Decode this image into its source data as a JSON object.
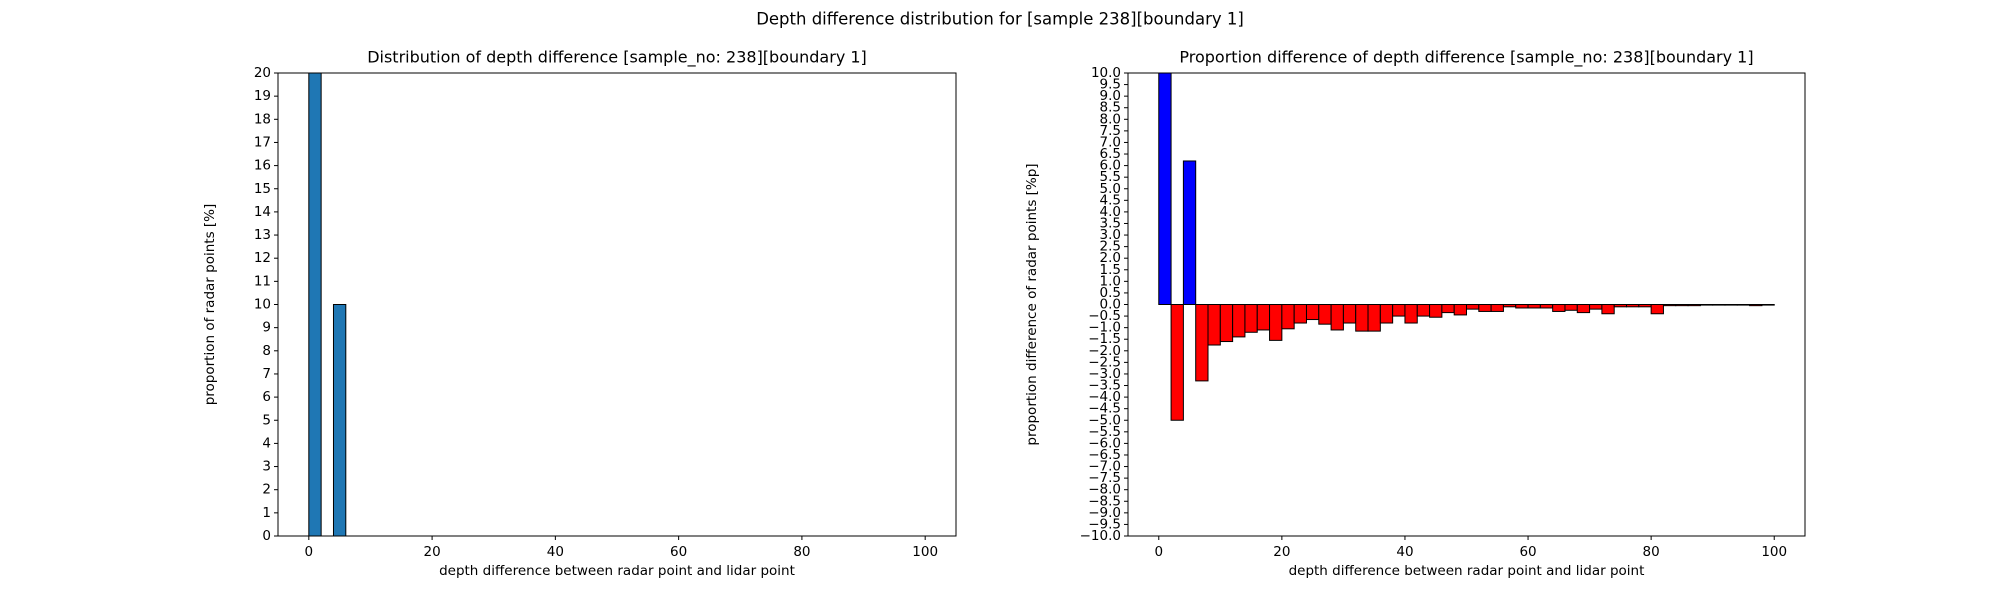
{
  "figure": {
    "suptitle": "Depth difference distribution for [sample 238][boundary 1]"
  },
  "chart_data": [
    {
      "type": "bar",
      "title": "Distribution of depth difference [sample_no: 238][boundary 1]",
      "xlabel": "depth difference between radar point and lidar point",
      "ylabel": "proportion of radar points [%]",
      "xlim": [
        -5,
        105
      ],
      "ylim": [
        0,
        20
      ],
      "xticks": [
        0,
        20,
        40,
        60,
        80,
        100
      ],
      "yticks": [
        0,
        1,
        2,
        3,
        4,
        5,
        6,
        7,
        8,
        9,
        10,
        11,
        12,
        13,
        14,
        15,
        16,
        17,
        18,
        19,
        20
      ],
      "bar_width": 2,
      "bar_color": "#1f77b4",
      "x": [
        1,
        5
      ],
      "values": [
        20,
        10
      ]
    },
    {
      "type": "bar",
      "title": "Proportion difference of depth difference [sample_no: 238][boundary 1]",
      "xlabel": "depth difference between radar point and lidar point",
      "ylabel": "proportion difference of radar points [%p]",
      "xlim": [
        -5,
        105
      ],
      "ylim": [
        -10,
        10
      ],
      "xticks": [
        0,
        20,
        40,
        60,
        80,
        100
      ],
      "yticks": [
        -10,
        -9.5,
        -9,
        -8.5,
        -8,
        -7.5,
        -7,
        -6.5,
        -6,
        -5.5,
        -5,
        -4.5,
        -4,
        -3.5,
        -3,
        -2.5,
        -2,
        -1.5,
        -1,
        -0.5,
        0,
        0.5,
        1,
        1.5,
        2,
        2.5,
        3,
        3.5,
        4,
        4.5,
        5,
        5.5,
        6,
        6.5,
        7,
        7.5,
        8,
        8.5,
        9,
        9.5,
        10
      ],
      "bar_width": 2,
      "positive_color": "#0000ff",
      "negative_color": "#ff0000",
      "x": [
        1,
        3,
        5,
        7,
        9,
        11,
        13,
        15,
        17,
        19,
        21,
        23,
        25,
        27,
        29,
        31,
        33,
        35,
        37,
        39,
        41,
        43,
        45,
        47,
        49,
        51,
        53,
        55,
        57,
        59,
        61,
        63,
        65,
        67,
        69,
        71,
        73,
        75,
        77,
        79,
        81,
        83,
        85,
        87,
        89,
        91,
        93,
        95,
        97,
        99
      ],
      "values": [
        10.0,
        -5.0,
        6.2,
        -3.3,
        -1.75,
        -1.6,
        -1.4,
        -1.2,
        -1.1,
        -1.55,
        -1.05,
        -0.8,
        -0.65,
        -0.85,
        -1.1,
        -0.8,
        -1.15,
        -1.15,
        -0.8,
        -0.5,
        -0.8,
        -0.5,
        -0.55,
        -0.35,
        -0.45,
        -0.2,
        -0.3,
        -0.3,
        -0.1,
        -0.15,
        -0.15,
        -0.15,
        -0.3,
        -0.25,
        -0.35,
        -0.2,
        -0.4,
        -0.1,
        -0.1,
        -0.1,
        -0.4,
        -0.05,
        -0.05,
        -0.05,
        0.0,
        0.0,
        0.0,
        0.0,
        -0.05,
        0.0
      ]
    }
  ]
}
